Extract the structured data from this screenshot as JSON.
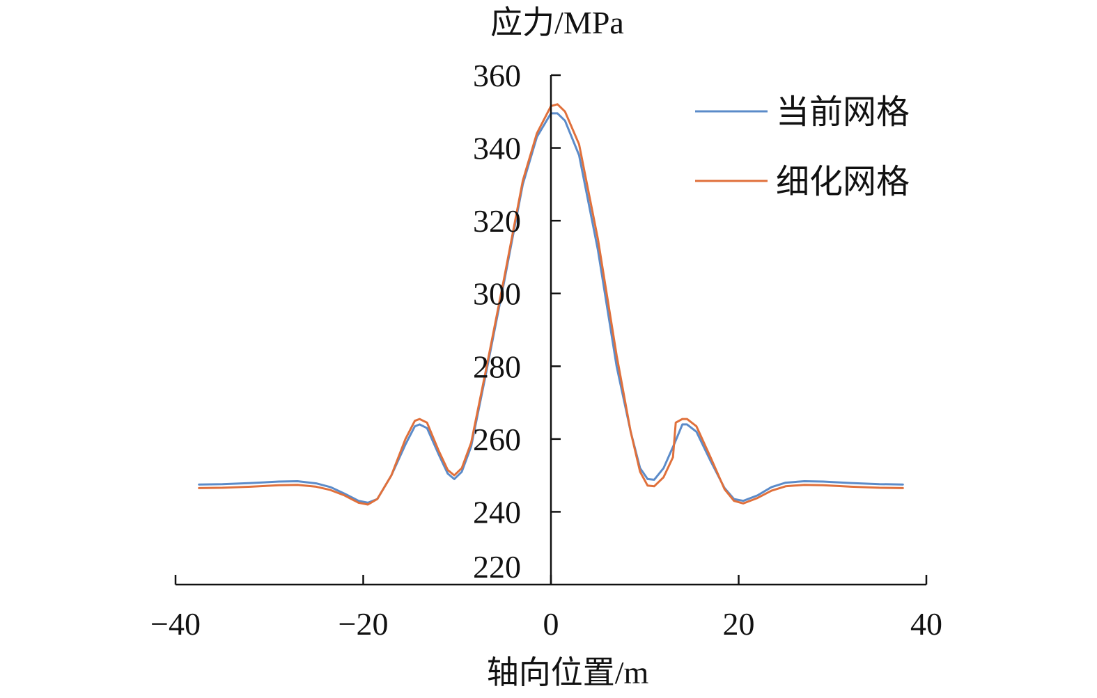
{
  "chart_data": {
    "type": "line",
    "title": "",
    "xlabel": "轴向位置/m",
    "ylabel": "应力/MPa",
    "xlim": [
      -40,
      40
    ],
    "ylim": [
      220,
      360
    ],
    "xticks": [
      -40,
      -20,
      0,
      20,
      40
    ],
    "xtick_labels": [
      "−40",
      "−20",
      "0",
      "20",
      "40"
    ],
    "yticks": [
      220,
      240,
      260,
      280,
      300,
      320,
      340,
      360
    ],
    "ytick_labels": [
      "220",
      "240",
      "260",
      "280",
      "300",
      "320",
      "340",
      "360"
    ],
    "grid": false,
    "legend": "top-right",
    "series": [
      {
        "name": "当前网格",
        "color": "#5b8bc9",
        "x": [
          -37.5,
          -35,
          -32,
          -29,
          -27,
          -25,
          -23.5,
          -22,
          -20.5,
          -19.5,
          -18.5,
          -17,
          -15.5,
          -14.5,
          -14,
          -13.2,
          -12,
          -11,
          -10.3,
          -9.5,
          -8.5,
          -7,
          -5,
          -3,
          -1.5,
          0,
          0.7,
          1.5,
          3,
          5,
          7,
          8.5,
          9.5,
          10.3,
          11,
          12,
          13.2,
          14,
          14.5,
          15.5,
          17,
          18.5,
          19.5,
          20.5,
          22,
          23.5,
          25,
          27,
          29,
          32,
          35,
          37.5
        ],
        "y": [
          247.5,
          247.6,
          247.9,
          248.3,
          248.4,
          247.8,
          246.8,
          245,
          243,
          242.5,
          243.5,
          250,
          258.5,
          263.5,
          264,
          263,
          256,
          250.5,
          249,
          251,
          258,
          277,
          303,
          330,
          343,
          349.5,
          349.5,
          347.5,
          338,
          312,
          280,
          262,
          252,
          249,
          248.8,
          252,
          259,
          264,
          264,
          262,
          254,
          246.5,
          243.5,
          243,
          244.5,
          246.8,
          248,
          248.4,
          248.3,
          247.9,
          247.6,
          247.5
        ]
      },
      {
        "name": "细化网格",
        "color": "#e0703b",
        "x": [
          -37.5,
          -35,
          -32,
          -29,
          -27,
          -25,
          -23.5,
          -22,
          -20.5,
          -19.5,
          -18.5,
          -17,
          -15.5,
          -14.5,
          -14,
          -13.2,
          -12,
          -11,
          -10.3,
          -9.5,
          -8.5,
          -7,
          -5,
          -3,
          -1.5,
          0,
          0.7,
          1.5,
          3,
          5,
          7,
          8.5,
          9.5,
          10.3,
          11,
          12,
          13,
          13.3,
          14,
          14.5,
          15.5,
          17,
          18.5,
          19.5,
          20.5,
          22,
          23.5,
          25,
          27,
          29,
          32,
          35,
          37.5
        ],
        "y": [
          246.5,
          246.6,
          246.9,
          247.3,
          247.4,
          246.9,
          246,
          244.5,
          242.5,
          242,
          243.5,
          250,
          260,
          265,
          265.5,
          264.5,
          257,
          251.5,
          250,
          252,
          259,
          278,
          304,
          331,
          344,
          351.5,
          352,
          350,
          341,
          315,
          283,
          262,
          251,
          247.2,
          247,
          249.5,
          255,
          264.5,
          265.5,
          265.5,
          263.5,
          255,
          246.2,
          243,
          242.3,
          243.8,
          245.8,
          247,
          247.4,
          247.3,
          246.9,
          246.6,
          246.5
        ]
      }
    ]
  }
}
